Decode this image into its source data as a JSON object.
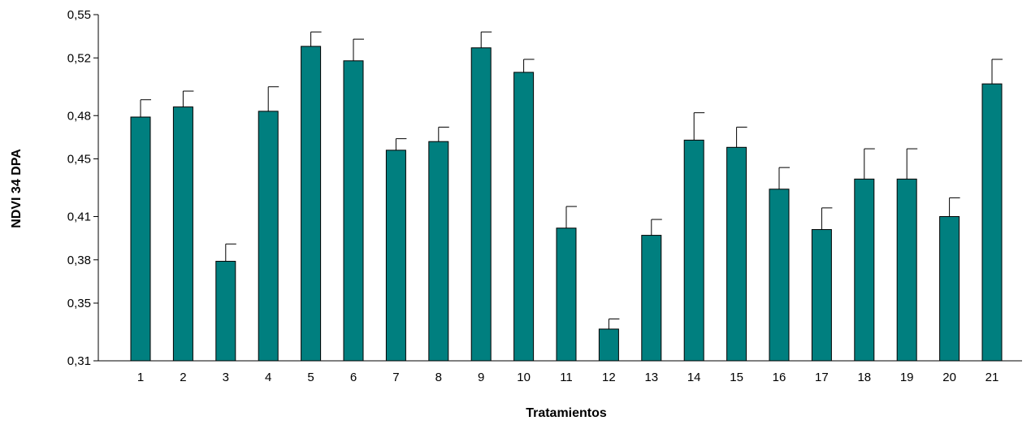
{
  "chart_data": {
    "type": "bar",
    "title": "",
    "xlabel": "Tratamientos",
    "ylabel": "NDVI 34 DPA",
    "categories": [
      "1",
      "2",
      "3",
      "4",
      "5",
      "6",
      "7",
      "8",
      "9",
      "10",
      "11",
      "12",
      "13",
      "14",
      "15",
      "16",
      "17",
      "18",
      "19",
      "20",
      "21"
    ],
    "values": [
      0.479,
      0.486,
      0.379,
      0.483,
      0.528,
      0.518,
      0.456,
      0.462,
      0.527,
      0.51,
      0.402,
      0.332,
      0.397,
      0.463,
      0.458,
      0.429,
      0.401,
      0.436,
      0.436,
      0.41,
      0.502
    ],
    "error": [
      0.012,
      0.011,
      0.012,
      0.017,
      0.01,
      0.015,
      0.008,
      0.01,
      0.011,
      0.009,
      0.015,
      0.007,
      0.011,
      0.019,
      0.014,
      0.015,
      0.015,
      0.021,
      0.021,
      0.013,
      0.017
    ],
    "ylim": [
      0.31,
      0.55
    ],
    "yticks": [
      0.31,
      0.35,
      0.38,
      0.41,
      0.45,
      0.48,
      0.52,
      0.55
    ],
    "ytick_labels": [
      "0,31",
      "0,35",
      "0,38",
      "0,41",
      "0,45",
      "0,48",
      "0,52",
      "0,55"
    ],
    "bar_color": "#007F7F",
    "grid": false,
    "legend": "none"
  }
}
